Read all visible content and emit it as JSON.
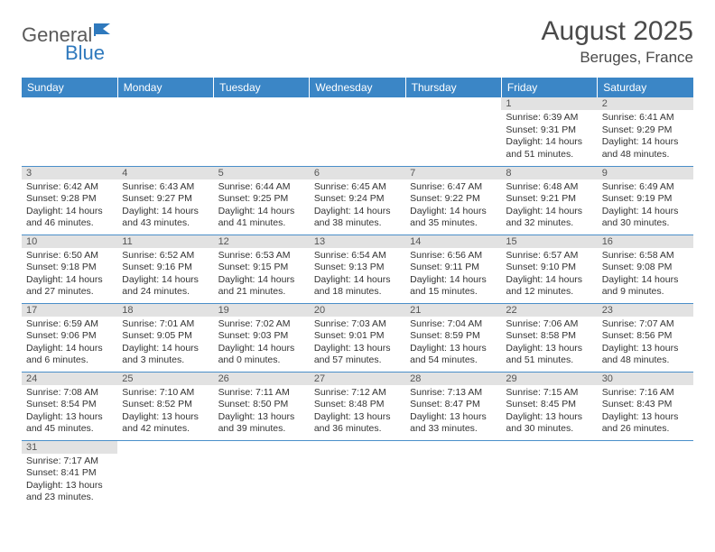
{
  "logo": {
    "part1": "General",
    "part2": "Blue"
  },
  "header": {
    "month_title": "August 2025",
    "location": "Beruges, France"
  },
  "colors": {
    "header_bg": "#3b86c6",
    "header_fg": "#ffffff",
    "daynum_bg": "#e2e2e2",
    "accent": "#2f79bd",
    "border": "#4a8fc9"
  },
  "weekdays": [
    "Sunday",
    "Monday",
    "Tuesday",
    "Wednesday",
    "Thursday",
    "Friday",
    "Saturday"
  ],
  "weeks": [
    [
      null,
      null,
      null,
      null,
      null,
      {
        "n": "1",
        "sunrise": "6:39 AM",
        "sunset": "9:31 PM",
        "daylight": "14 hours and 51 minutes."
      },
      {
        "n": "2",
        "sunrise": "6:41 AM",
        "sunset": "9:29 PM",
        "daylight": "14 hours and 48 minutes."
      }
    ],
    [
      {
        "n": "3",
        "sunrise": "6:42 AM",
        "sunset": "9:28 PM",
        "daylight": "14 hours and 46 minutes."
      },
      {
        "n": "4",
        "sunrise": "6:43 AM",
        "sunset": "9:27 PM",
        "daylight": "14 hours and 43 minutes."
      },
      {
        "n": "5",
        "sunrise": "6:44 AM",
        "sunset": "9:25 PM",
        "daylight": "14 hours and 41 minutes."
      },
      {
        "n": "6",
        "sunrise": "6:45 AM",
        "sunset": "9:24 PM",
        "daylight": "14 hours and 38 minutes."
      },
      {
        "n": "7",
        "sunrise": "6:47 AM",
        "sunset": "9:22 PM",
        "daylight": "14 hours and 35 minutes."
      },
      {
        "n": "8",
        "sunrise": "6:48 AM",
        "sunset": "9:21 PM",
        "daylight": "14 hours and 32 minutes."
      },
      {
        "n": "9",
        "sunrise": "6:49 AM",
        "sunset": "9:19 PM",
        "daylight": "14 hours and 30 minutes."
      }
    ],
    [
      {
        "n": "10",
        "sunrise": "6:50 AM",
        "sunset": "9:18 PM",
        "daylight": "14 hours and 27 minutes."
      },
      {
        "n": "11",
        "sunrise": "6:52 AM",
        "sunset": "9:16 PM",
        "daylight": "14 hours and 24 minutes."
      },
      {
        "n": "12",
        "sunrise": "6:53 AM",
        "sunset": "9:15 PM",
        "daylight": "14 hours and 21 minutes."
      },
      {
        "n": "13",
        "sunrise": "6:54 AM",
        "sunset": "9:13 PM",
        "daylight": "14 hours and 18 minutes."
      },
      {
        "n": "14",
        "sunrise": "6:56 AM",
        "sunset": "9:11 PM",
        "daylight": "14 hours and 15 minutes."
      },
      {
        "n": "15",
        "sunrise": "6:57 AM",
        "sunset": "9:10 PM",
        "daylight": "14 hours and 12 minutes."
      },
      {
        "n": "16",
        "sunrise": "6:58 AM",
        "sunset": "9:08 PM",
        "daylight": "14 hours and 9 minutes."
      }
    ],
    [
      {
        "n": "17",
        "sunrise": "6:59 AM",
        "sunset": "9:06 PM",
        "daylight": "14 hours and 6 minutes."
      },
      {
        "n": "18",
        "sunrise": "7:01 AM",
        "sunset": "9:05 PM",
        "daylight": "14 hours and 3 minutes."
      },
      {
        "n": "19",
        "sunrise": "7:02 AM",
        "sunset": "9:03 PM",
        "daylight": "14 hours and 0 minutes."
      },
      {
        "n": "20",
        "sunrise": "7:03 AM",
        "sunset": "9:01 PM",
        "daylight": "13 hours and 57 minutes."
      },
      {
        "n": "21",
        "sunrise": "7:04 AM",
        "sunset": "8:59 PM",
        "daylight": "13 hours and 54 minutes."
      },
      {
        "n": "22",
        "sunrise": "7:06 AM",
        "sunset": "8:58 PM",
        "daylight": "13 hours and 51 minutes."
      },
      {
        "n": "23",
        "sunrise": "7:07 AM",
        "sunset": "8:56 PM",
        "daylight": "13 hours and 48 minutes."
      }
    ],
    [
      {
        "n": "24",
        "sunrise": "7:08 AM",
        "sunset": "8:54 PM",
        "daylight": "13 hours and 45 minutes."
      },
      {
        "n": "25",
        "sunrise": "7:10 AM",
        "sunset": "8:52 PM",
        "daylight": "13 hours and 42 minutes."
      },
      {
        "n": "26",
        "sunrise": "7:11 AM",
        "sunset": "8:50 PM",
        "daylight": "13 hours and 39 minutes."
      },
      {
        "n": "27",
        "sunrise": "7:12 AM",
        "sunset": "8:48 PM",
        "daylight": "13 hours and 36 minutes."
      },
      {
        "n": "28",
        "sunrise": "7:13 AM",
        "sunset": "8:47 PM",
        "daylight": "13 hours and 33 minutes."
      },
      {
        "n": "29",
        "sunrise": "7:15 AM",
        "sunset": "8:45 PM",
        "daylight": "13 hours and 30 minutes."
      },
      {
        "n": "30",
        "sunrise": "7:16 AM",
        "sunset": "8:43 PM",
        "daylight": "13 hours and 26 minutes."
      }
    ],
    [
      {
        "n": "31",
        "sunrise": "7:17 AM",
        "sunset": "8:41 PM",
        "daylight": "13 hours and 23 minutes."
      },
      null,
      null,
      null,
      null,
      null,
      null
    ]
  ],
  "labels": {
    "sunrise": "Sunrise: ",
    "sunset": "Sunset: ",
    "daylight": "Daylight: "
  }
}
